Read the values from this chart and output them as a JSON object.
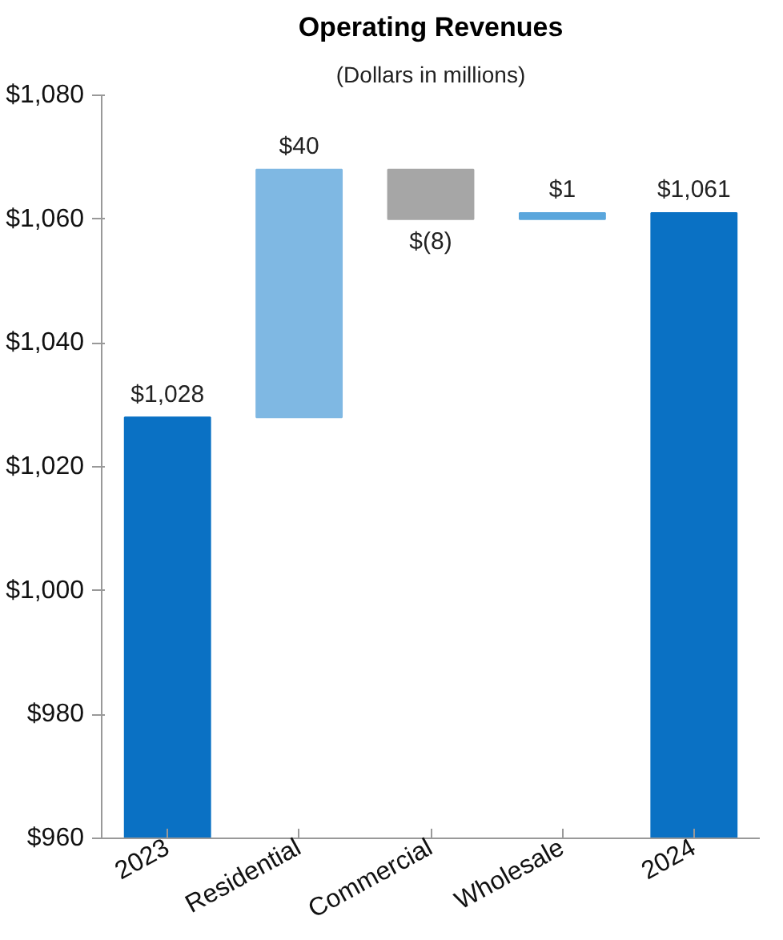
{
  "chart_data": {
    "type": "bar",
    "title": "Operating Revenues",
    "subtitle": "(Dollars in millions)",
    "categories": [
      "2023",
      "Residential",
      "Commercial",
      "Wholesale",
      "2024"
    ],
    "values": [
      68,
      40,
      -8,
      1,
      101
    ],
    "base": [
      960,
      1028,
      1068,
      1060,
      960
    ],
    "colors": [
      "#0a71c4",
      "#7fb8e3",
      "#a6a6a6",
      "#5aa6dc",
      "#0a71c4"
    ],
    "value_labels": [
      "$1,028",
      "$40",
      "$(8)",
      "$1",
      "$1,061"
    ],
    "ylim": [
      960,
      1080
    ],
    "yticks": [
      {
        "value": 960,
        "label": "$960"
      },
      {
        "value": 980,
        "label": "$980"
      },
      {
        "value": 1000,
        "label": "$1,000"
      },
      {
        "value": 1020,
        "label": "$1,020"
      },
      {
        "value": 1040,
        "label": "$1,040"
      },
      {
        "value": 1060,
        "label": "$1,060"
      },
      {
        "value": 1080,
        "label": "$1,080"
      }
    ],
    "grid": false
  }
}
